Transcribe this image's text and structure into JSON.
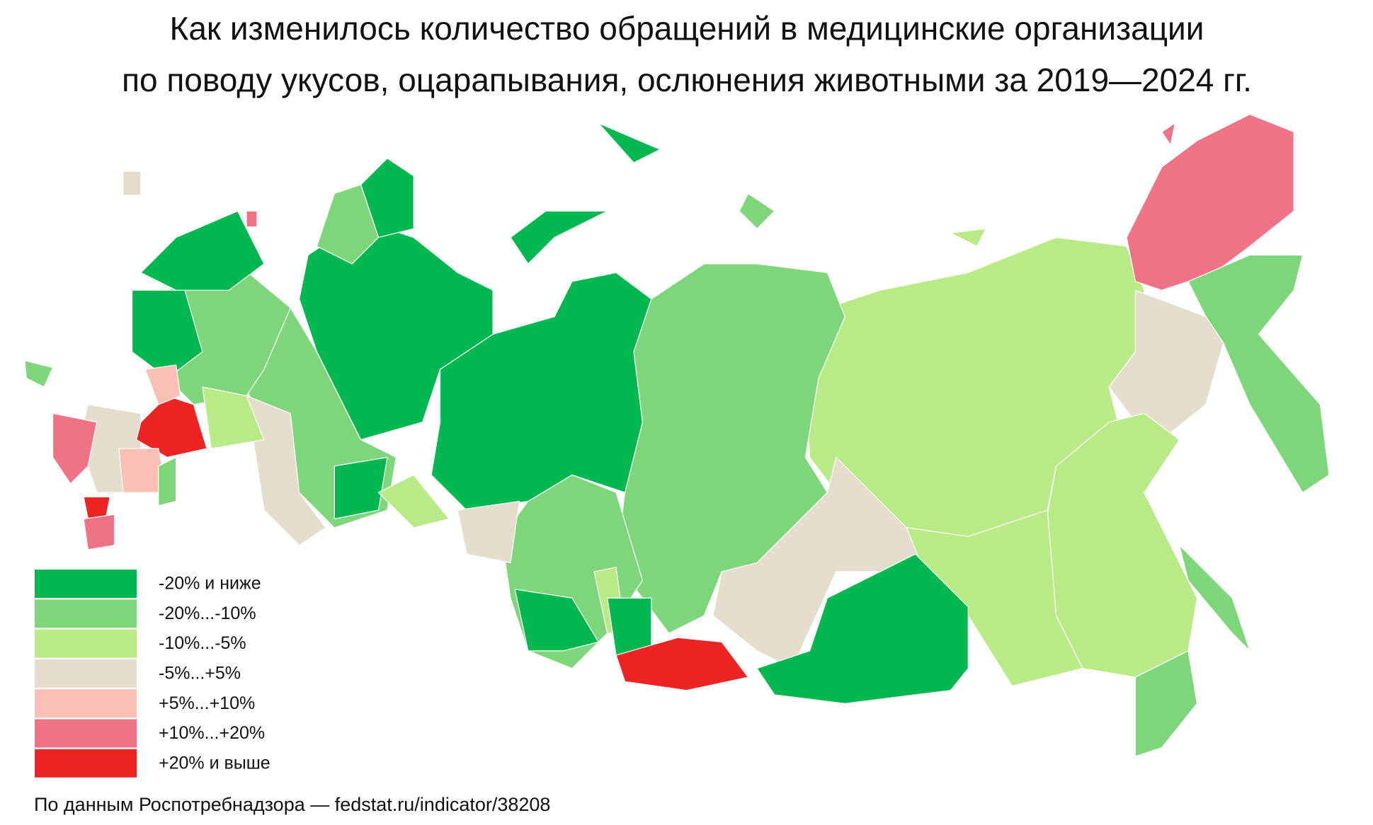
{
  "header": {
    "title": [
      "Как изменилось количество обращений в медицинские организации",
      "по поводу укусов, оцарапывания, ослюнения животными за 2019—2024 гг."
    ]
  },
  "legend": [
    {
      "label": "-20% и ниже",
      "color": "#00b84f"
    },
    {
      "label": "-20%...-10%",
      "color": "#7ed67a"
    },
    {
      "label": "-10%...-5%",
      "color": "#b8eb86"
    },
    {
      "label": "-5%...+5%",
      "color": "#e4ddcb"
    },
    {
      "label": "+5%...+10%",
      "color": "#fbbfb4"
    },
    {
      "label": "+10%...+20%",
      "color": "#f07385"
    },
    {
      "label": "+20% и выше",
      "color": "#ed2424"
    }
  ],
  "source": "По данным  Роспотребнадзора — fedstat.ru/indicator/38208"
}
